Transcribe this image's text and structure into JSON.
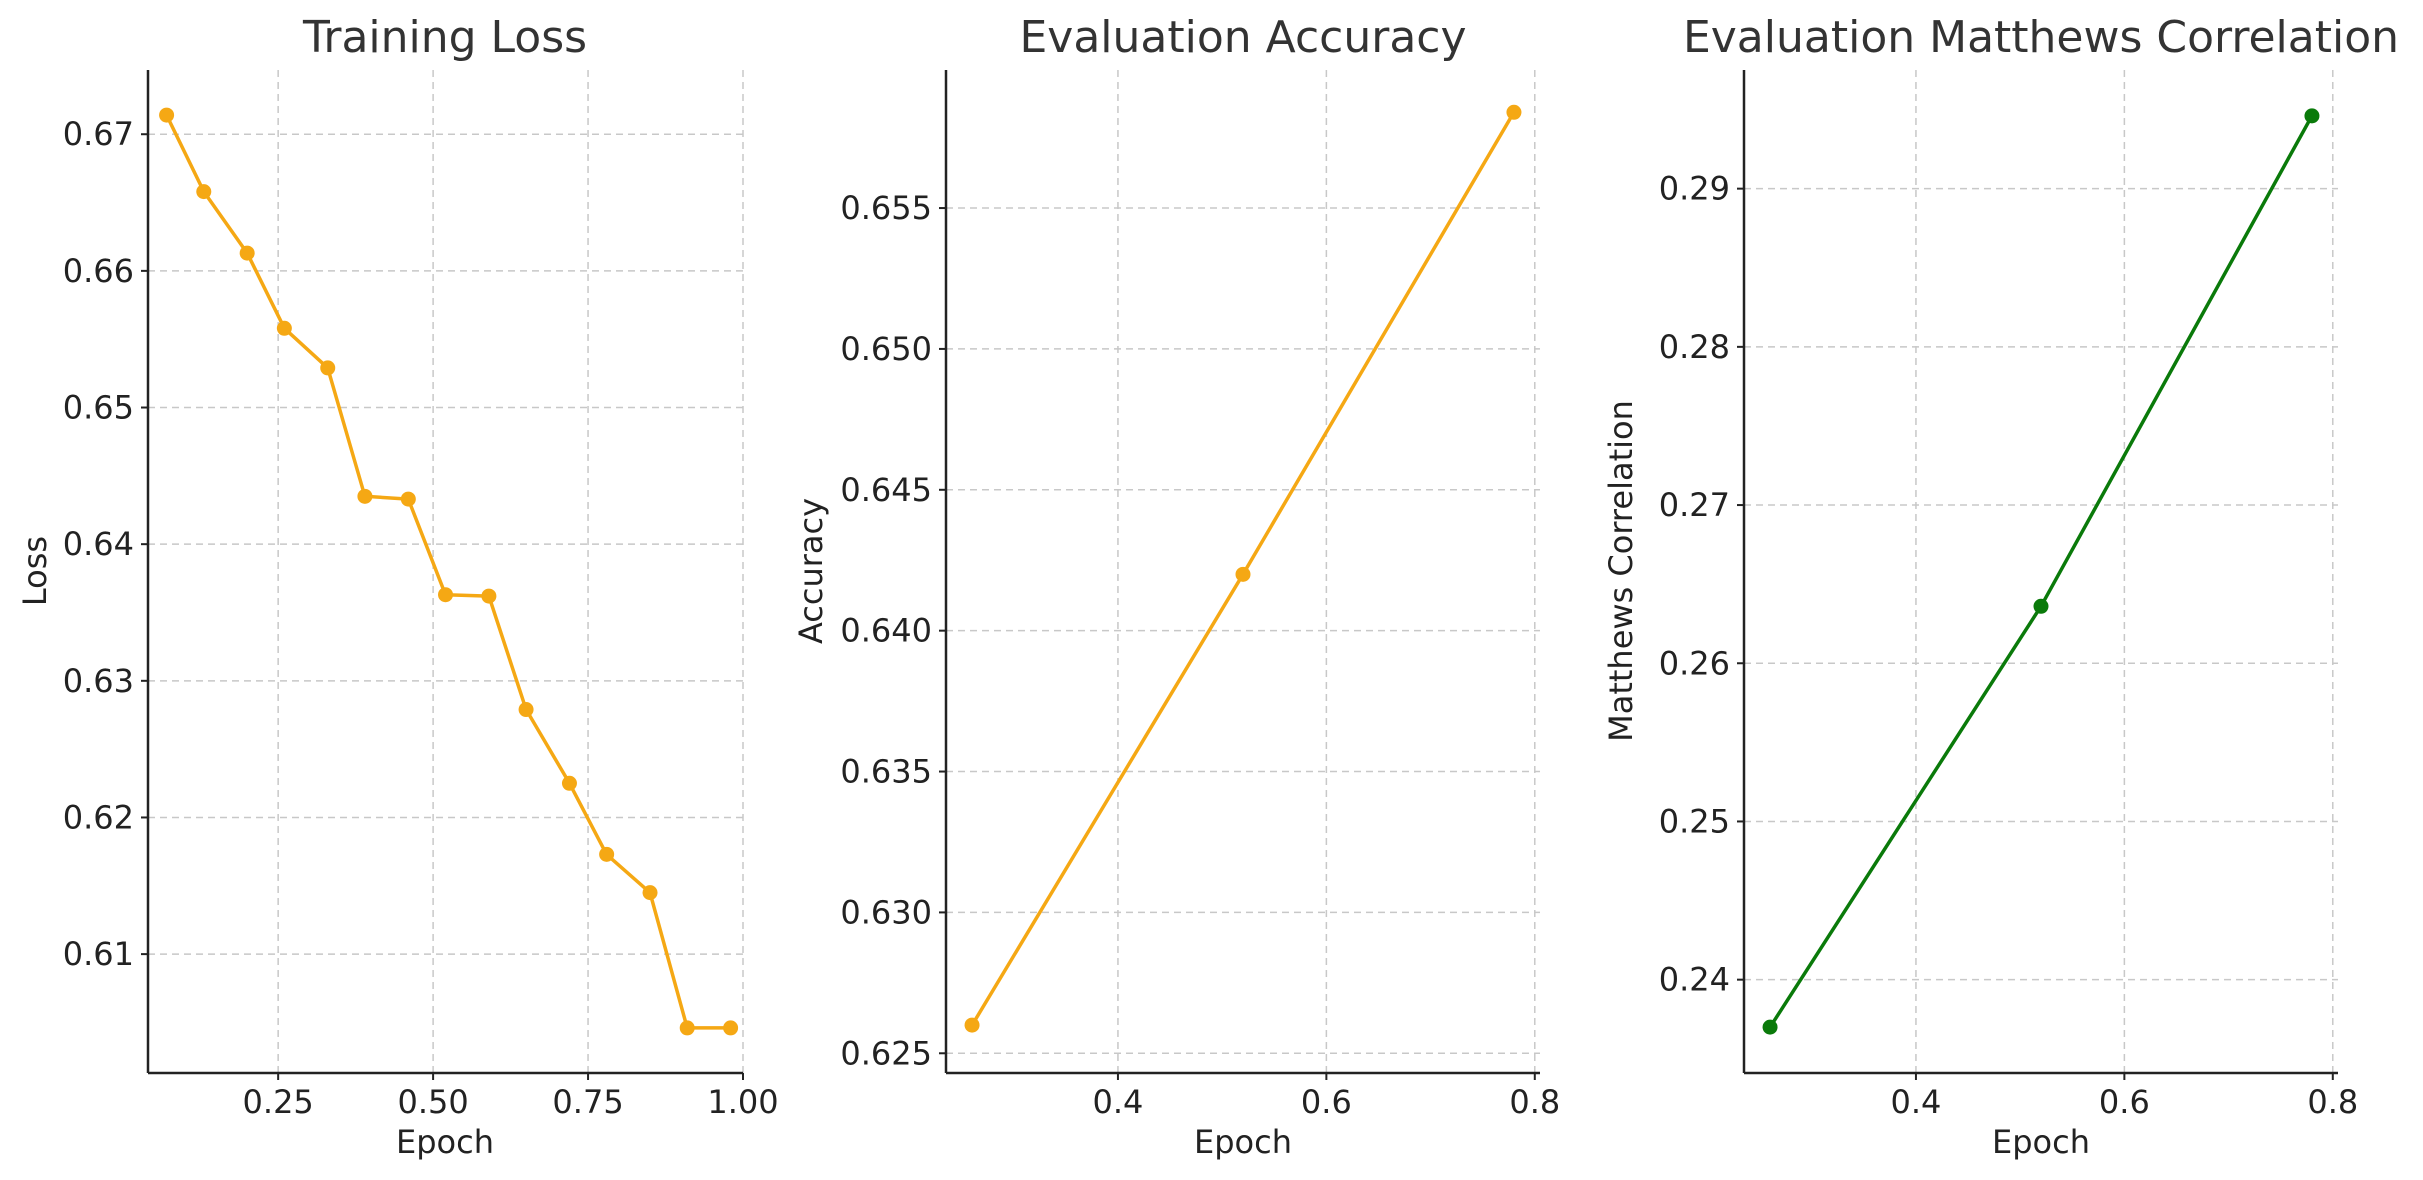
{
  "chart_data": [
    {
      "type": "line",
      "title": "Training Loss",
      "xlabel": "Epoch",
      "ylabel": "Loss",
      "xlim": [
        0.04,
        1.0
      ],
      "ylim": [
        0.6013,
        0.6747
      ],
      "xticks": [
        0.25,
        0.5,
        0.75,
        1.0
      ],
      "xtick_labels": [
        "0.25",
        "0.50",
        "0.75",
        "1.00"
      ],
      "yticks": [
        0.61,
        0.62,
        0.63,
        0.64,
        0.65,
        0.66,
        0.67
      ],
      "ytick_labels": [
        "0.61",
        "0.62",
        "0.63",
        "0.64",
        "0.65",
        "0.66",
        "0.67"
      ],
      "grid": true,
      "color": "#f5a814",
      "series": [
        {
          "x": [
            0.07,
            0.13,
            0.2,
            0.26,
            0.33,
            0.39,
            0.46,
            0.52,
            0.59,
            0.65,
            0.72,
            0.78,
            0.85,
            0.91,
            0.98
          ],
          "y": [
            0.6714,
            0.6658,
            0.6613,
            0.6558,
            0.6529,
            0.6435,
            0.6433,
            0.6363,
            0.6362,
            0.6279,
            0.6225,
            0.6173,
            0.6145,
            0.6046,
            0.6046
          ]
        }
      ]
    },
    {
      "type": "line",
      "title": "Evaluation Accuracy",
      "xlabel": "Epoch",
      "ylabel": "Accuracy",
      "xlim": [
        0.235,
        0.805
      ],
      "ylim": [
        0.6243,
        0.6599
      ],
      "xticks": [
        0.4,
        0.6,
        0.8
      ],
      "xtick_labels": [
        "0.4",
        "0.6",
        "0.8"
      ],
      "yticks": [
        0.625,
        0.63,
        0.635,
        0.64,
        0.645,
        0.65,
        0.655
      ],
      "ytick_labels": [
        "0.625",
        "0.630",
        "0.635",
        "0.640",
        "0.645",
        "0.650",
        "0.655"
      ],
      "grid": true,
      "color": "#f5a814",
      "series": [
        {
          "x": [
            0.26,
            0.52,
            0.78
          ],
          "y": [
            0.626,
            0.642,
            0.6584
          ]
        }
      ]
    },
    {
      "type": "line",
      "title": "Evaluation Matthews Correlation",
      "xlabel": "Epoch",
      "ylabel": "Matthews Correlation",
      "xlim": [
        0.235,
        0.805
      ],
      "ylim": [
        0.2341,
        0.2975
      ],
      "xticks": [
        0.4,
        0.6,
        0.8
      ],
      "xtick_labels": [
        "0.4",
        "0.6",
        "0.8"
      ],
      "yticks": [
        0.24,
        0.25,
        0.26,
        0.27,
        0.28,
        0.29
      ],
      "ytick_labels": [
        "0.24",
        "0.25",
        "0.26",
        "0.27",
        "0.28",
        "0.29"
      ],
      "grid": true,
      "color": "#0a7a0a",
      "series": [
        {
          "x": [
            0.26,
            0.52,
            0.78
          ],
          "y": [
            0.237,
            0.2636,
            0.2946
          ]
        }
      ]
    }
  ]
}
